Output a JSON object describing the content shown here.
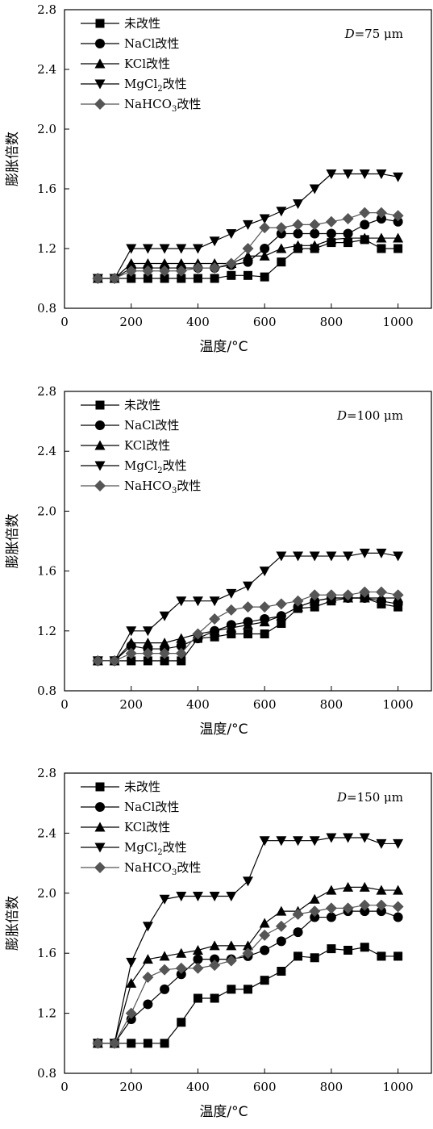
{
  "chart_data": [
    {
      "type": "line",
      "annotation": {
        "italic": "D",
        "rest": "=75 μm"
      },
      "xlabel": "温度/°C",
      "ylabel": "膨胀倍数",
      "xlim": [
        0,
        1100
      ],
      "ylim": [
        0.8,
        2.8
      ],
      "xticks": [
        "0",
        "200",
        "400",
        "600",
        "800",
        "1000"
      ],
      "yticks": [
        "0.8",
        "1.2",
        "1.6",
        "2.0",
        "2.4",
        "2.8"
      ],
      "legend_position": "top-left",
      "x": [
        100,
        150,
        200,
        250,
        300,
        350,
        400,
        450,
        500,
        550,
        600,
        650,
        700,
        750,
        800,
        850,
        900,
        950,
        1000
      ],
      "series": [
        {
          "name": "未改性",
          "marker": "square",
          "color": "#000000",
          "values": [
            1.0,
            1.0,
            1.0,
            1.0,
            1.0,
            1.0,
            1.0,
            1.0,
            1.02,
            1.02,
            1.01,
            1.11,
            1.2,
            1.2,
            1.24,
            1.24,
            1.26,
            1.2,
            1.2
          ]
        },
        {
          "name": "NaCl改性",
          "marker": "circle",
          "color": "#000000",
          "values": [
            1.0,
            1.0,
            1.07,
            1.07,
            1.07,
            1.07,
            1.07,
            1.07,
            1.09,
            1.11,
            1.2,
            1.3,
            1.3,
            1.3,
            1.3,
            1.3,
            1.36,
            1.4,
            1.38
          ]
        },
        {
          "name": "KCl改性",
          "marker": "triangle-up",
          "color": "#000000",
          "values": [
            1.0,
            1.0,
            1.1,
            1.1,
            1.1,
            1.1,
            1.1,
            1.1,
            1.1,
            1.15,
            1.15,
            1.2,
            1.22,
            1.22,
            1.26,
            1.27,
            1.27,
            1.27,
            1.27
          ]
        },
        {
          "name": "MgCl2改性",
          "name_parts": [
            "MgCl",
            "2",
            "改性"
          ],
          "marker": "triangle-down",
          "color": "#000000",
          "values": [
            1.0,
            1.0,
            1.2,
            1.2,
            1.2,
            1.2,
            1.2,
            1.25,
            1.3,
            1.36,
            1.4,
            1.45,
            1.5,
            1.6,
            1.7,
            1.7,
            1.7,
            1.7,
            1.68
          ]
        },
        {
          "name": "NaHCO3改性",
          "name_parts": [
            "NaHCO",
            "3",
            "改性"
          ],
          "marker": "diamond",
          "color": "#555555",
          "values": [
            1.0,
            1.0,
            1.05,
            1.05,
            1.05,
            1.05,
            1.07,
            1.07,
            1.1,
            1.2,
            1.34,
            1.34,
            1.36,
            1.36,
            1.38,
            1.4,
            1.44,
            1.44,
            1.42
          ]
        }
      ]
    },
    {
      "type": "line",
      "annotation": {
        "italic": "D",
        "rest": "=100 μm"
      },
      "xlabel": "温度/°C",
      "ylabel": "膨胀倍数",
      "xlim": [
        0,
        1100
      ],
      "ylim": [
        0.8,
        2.8
      ],
      "xticks": [
        "0",
        "200",
        "400",
        "600",
        "800",
        "1000"
      ],
      "yticks": [
        "0.8",
        "1.2",
        "1.6",
        "2.0",
        "2.4",
        "2.8"
      ],
      "legend_position": "top-left",
      "x": [
        100,
        150,
        200,
        250,
        300,
        350,
        400,
        450,
        500,
        550,
        600,
        650,
        700,
        750,
        800,
        850,
        900,
        950,
        1000
      ],
      "series": [
        {
          "name": "未改性",
          "marker": "square",
          "color": "#000000",
          "values": [
            1.0,
            1.0,
            1.0,
            1.0,
            1.0,
            1.0,
            1.15,
            1.16,
            1.18,
            1.18,
            1.18,
            1.25,
            1.35,
            1.36,
            1.4,
            1.42,
            1.42,
            1.38,
            1.36
          ]
        },
        {
          "name": "NaCl改性",
          "marker": "circle",
          "color": "#000000",
          "values": [
            1.0,
            1.0,
            1.1,
            1.08,
            1.08,
            1.1,
            1.15,
            1.2,
            1.24,
            1.26,
            1.28,
            1.3,
            1.36,
            1.4,
            1.42,
            1.42,
            1.42,
            1.4,
            1.38
          ]
        },
        {
          "name": "KCl改性",
          "marker": "triangle-up",
          "color": "#000000",
          "values": [
            1.0,
            1.0,
            1.12,
            1.12,
            1.12,
            1.15,
            1.18,
            1.2,
            1.22,
            1.24,
            1.26,
            1.3,
            1.36,
            1.4,
            1.42,
            1.42,
            1.42,
            1.42,
            1.42
          ]
        },
        {
          "name": "MgCl2改性",
          "name_parts": [
            "MgCl",
            "2",
            "改性"
          ],
          "marker": "triangle-down",
          "color": "#000000",
          "values": [
            1.0,
            1.0,
            1.2,
            1.2,
            1.3,
            1.4,
            1.4,
            1.4,
            1.45,
            1.5,
            1.6,
            1.7,
            1.7,
            1.7,
            1.7,
            1.7,
            1.72,
            1.72,
            1.7
          ]
        },
        {
          "name": "NaHCO3改性",
          "name_parts": [
            "NaHCO",
            "3",
            "改性"
          ],
          "marker": "diamond",
          "color": "#555555",
          "values": [
            1.0,
            1.0,
            1.05,
            1.05,
            1.05,
            1.05,
            1.18,
            1.28,
            1.34,
            1.36,
            1.36,
            1.38,
            1.4,
            1.44,
            1.44,
            1.44,
            1.46,
            1.46,
            1.44
          ]
        }
      ]
    },
    {
      "type": "line",
      "annotation": {
        "italic": "D",
        "rest": "=150 μm"
      },
      "xlabel": "温度/°C",
      "ylabel": "膨胀倍数",
      "xlim": [
        0,
        1100
      ],
      "ylim": [
        0.8,
        2.8
      ],
      "xticks": [
        "0",
        "200",
        "400",
        "600",
        "800",
        "1000"
      ],
      "yticks": [
        "0.8",
        "1.2",
        "1.6",
        "2.0",
        "2.4",
        "2.8"
      ],
      "legend_position": "top-left",
      "x": [
        100,
        150,
        200,
        250,
        300,
        350,
        400,
        450,
        500,
        550,
        600,
        650,
        700,
        750,
        800,
        850,
        900,
        950,
        1000
      ],
      "series": [
        {
          "name": "未改性",
          "marker": "square",
          "color": "#000000",
          "values": [
            1.0,
            1.0,
            1.0,
            1.0,
            1.0,
            1.14,
            1.3,
            1.3,
            1.36,
            1.36,
            1.42,
            1.48,
            1.58,
            1.57,
            1.63,
            1.62,
            1.64,
            1.58,
            1.58
          ]
        },
        {
          "name": "NaCl改性",
          "marker": "circle",
          "color": "#000000",
          "values": [
            1.0,
            1.0,
            1.16,
            1.26,
            1.36,
            1.46,
            1.56,
            1.56,
            1.56,
            1.58,
            1.62,
            1.68,
            1.74,
            1.84,
            1.84,
            1.88,
            1.88,
            1.88,
            1.84
          ]
        },
        {
          "name": "KCl改性",
          "marker": "triangle-up",
          "color": "#000000",
          "values": [
            1.0,
            1.0,
            1.4,
            1.56,
            1.58,
            1.6,
            1.62,
            1.65,
            1.65,
            1.65,
            1.8,
            1.88,
            1.88,
            1.96,
            2.02,
            2.04,
            2.04,
            2.02,
            2.02
          ]
        },
        {
          "name": "MgCl2改性",
          "name_parts": [
            "MgCl",
            "2",
            "改性"
          ],
          "marker": "triangle-down",
          "color": "#000000",
          "values": [
            1.0,
            1.0,
            1.54,
            1.78,
            1.96,
            1.98,
            1.98,
            1.98,
            1.98,
            2.08,
            2.35,
            2.35,
            2.35,
            2.35,
            2.37,
            2.37,
            2.37,
            2.33,
            2.33
          ]
        },
        {
          "name": "NaHCO3改性",
          "name_parts": [
            "NaHCO",
            "3",
            "改性"
          ],
          "marker": "diamond",
          "color": "#555555",
          "values": [
            1.0,
            1.0,
            1.2,
            1.44,
            1.49,
            1.5,
            1.5,
            1.52,
            1.55,
            1.6,
            1.72,
            1.78,
            1.86,
            1.88,
            1.9,
            1.9,
            1.92,
            1.92,
            1.91
          ]
        }
      ]
    }
  ]
}
